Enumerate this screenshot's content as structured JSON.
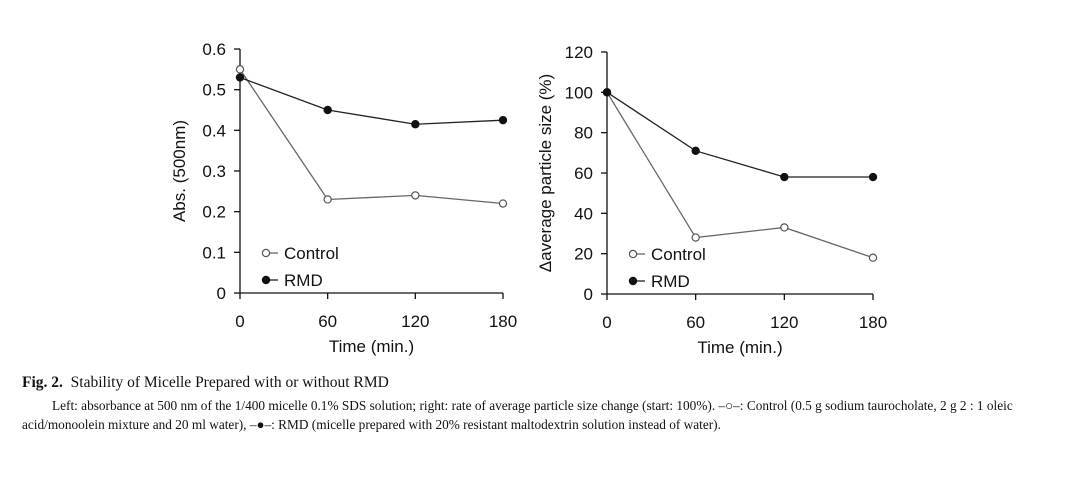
{
  "chart_data": [
    {
      "type": "line",
      "x": [
        0,
        60,
        120,
        180
      ],
      "xlabel": "Time (min.)",
      "ylabel": "Abs. (500nm)",
      "xlim": [
        0,
        180
      ],
      "ylim": [
        0,
        0.6
      ],
      "xticks": [
        "0",
        "60",
        "120",
        "180"
      ],
      "yticks": [
        "0",
        "0.1",
        "0.2",
        "0.3",
        "0.4",
        "0.5",
        "0.6"
      ],
      "grid": false,
      "legend": "bottom-left",
      "series": [
        {
          "name": "Control",
          "marker": "open-circle",
          "values": [
            0.55,
            0.23,
            0.24,
            0.22
          ]
        },
        {
          "name": "RMD",
          "marker": "filled-circle",
          "values": [
            0.53,
            0.45,
            0.415,
            0.425
          ]
        }
      ]
    },
    {
      "type": "line",
      "x": [
        0,
        60,
        120,
        180
      ],
      "xlabel": "Time (min.)",
      "ylabel": "Δaverage particle size (%)",
      "xlim": [
        0,
        180
      ],
      "ylim": [
        0,
        120
      ],
      "xticks": [
        "0",
        "60",
        "120",
        "180"
      ],
      "yticks": [
        "0",
        "20",
        "40",
        "60",
        "80",
        "100",
        "120"
      ],
      "grid": false,
      "legend": "bottom-left",
      "series": [
        {
          "name": "Control",
          "marker": "open-circle",
          "values": [
            100,
            28,
            33,
            18
          ]
        },
        {
          "name": "RMD",
          "marker": "filled-circle",
          "values": [
            100,
            71,
            58,
            58
          ]
        }
      ]
    }
  ],
  "caption": {
    "label": "Fig. 2.",
    "title": "Stability of Micelle Prepared with or without RMD",
    "body": "Left: absorbance at 500 nm of the 1/400 micelle 0.1% SDS solution; right: rate of average particle size change (start: 100%). –○–: Control (0.5 g sodium taurocholate, 2 g 2 : 1 oleic acid/monoolein mixture and 20 ml water), –●–: RMD (micelle prepared with 20% resistant maltodextrin solution instead of water)."
  }
}
